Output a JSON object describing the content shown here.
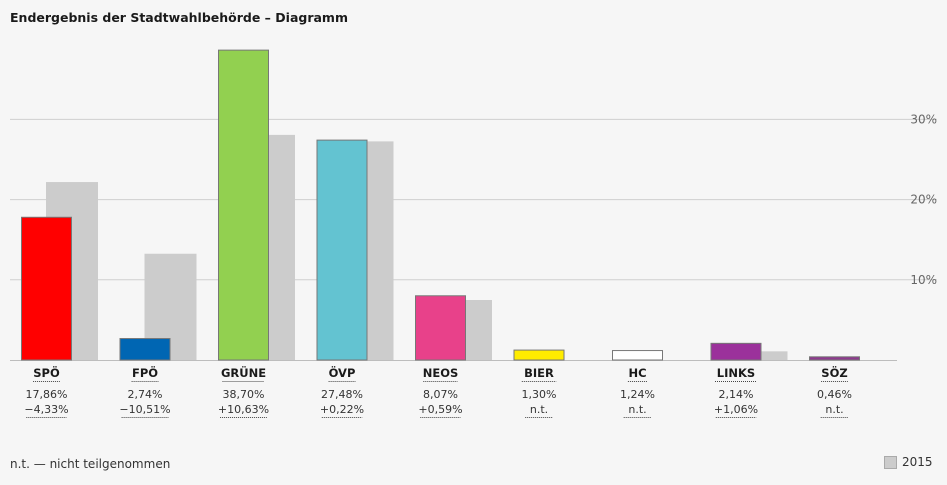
{
  "title": "Endergebnis der Stadtwahlbehörde – Diagramm",
  "footnote": "n.t. — nicht teilgenommen",
  "legend": {
    "prev_label": "2015",
    "prev_color": "#cccccc"
  },
  "chart_data": {
    "type": "bar",
    "title": "Endergebnis der Stadtwahlbehörde – Diagramm",
    "categories": [
      "SPÖ",
      "FPÖ",
      "GRÜNE",
      "ÖVP",
      "NEOS",
      "BIER",
      "HC",
      "LINKS",
      "SÖZ"
    ],
    "series": [
      {
        "values": [
          17.86,
          2.74,
          38.7,
          27.48,
          8.07,
          1.3,
          1.24,
          2.14,
          0.46
        ],
        "colors": [
          "#ff0000",
          "#0066b3",
          "#92d050",
          "#63c3d1",
          "#e8418a",
          "#ffec00",
          "#ffffff",
          "#9b319b",
          "#8e3a8e"
        ]
      },
      {
        "name": "2015",
        "values": [
          22.19,
          13.25,
          28.07,
          27.26,
          7.48,
          null,
          null,
          1.08,
          null
        ],
        "color": "#cccccc"
      }
    ],
    "value_labels": [
      "17,86%",
      "2,74%",
      "38,70%",
      "27,48%",
      "8,07%",
      "1,30%",
      "1,24%",
      "2,14%",
      "0,46%"
    ],
    "diff_labels": [
      "−4,33%",
      "−10,51%",
      "+10,63%",
      "+0,22%",
      "+0,59%",
      "n.t.",
      "n.t.",
      "+1,06%",
      "n.t."
    ],
    "yticks": [
      10,
      20,
      30
    ],
    "ytick_labels": [
      "10%",
      "20%",
      "30%"
    ],
    "ylim": [
      0,
      40
    ],
    "grid": true,
    "legend_position": "bottom-right"
  }
}
